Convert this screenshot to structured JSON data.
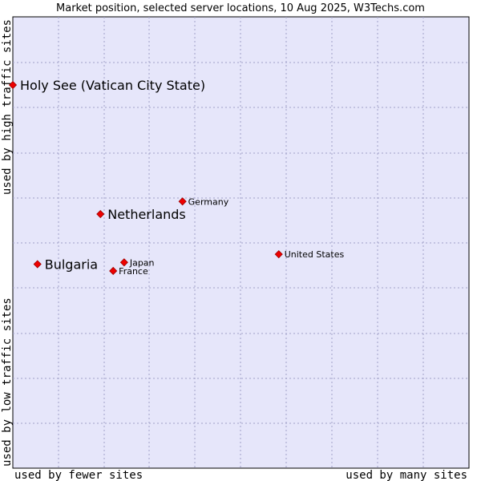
{
  "chart_data": {
    "type": "scatter",
    "title": "Market position, selected server locations, 10 Aug 2025, W3Techs.com",
    "xlabel_low": "used by fewer sites",
    "xlabel_high": "used by many sites",
    "ylabel_low": "used by low traffic sites",
    "ylabel_high": "used by high traffic sites",
    "xlim": [
      0,
      100
    ],
    "ylim": [
      0,
      100
    ],
    "grid": true,
    "colors": {
      "plot_bg": "#e6e6fa",
      "grid": "#a0a0c8",
      "marker": "#ee0000",
      "marker_edge": "#990000"
    },
    "points": [
      {
        "name": "Holy See (Vatican City State)",
        "x": 0.0,
        "y": 84.9,
        "highlight": true
      },
      {
        "name": "Netherlands",
        "x": 19.2,
        "y": 56.3,
        "highlight": true
      },
      {
        "name": "Bulgaria",
        "x": 5.4,
        "y": 45.2,
        "highlight": true
      },
      {
        "name": "Germany",
        "x": 37.2,
        "y": 59.1,
        "highlight": false
      },
      {
        "name": "Japan",
        "x": 24.4,
        "y": 45.6,
        "highlight": false
      },
      {
        "name": "France",
        "x": 22.0,
        "y": 43.7,
        "highlight": false
      },
      {
        "name": "United States",
        "x": 58.3,
        "y": 47.4,
        "highlight": false
      }
    ]
  }
}
